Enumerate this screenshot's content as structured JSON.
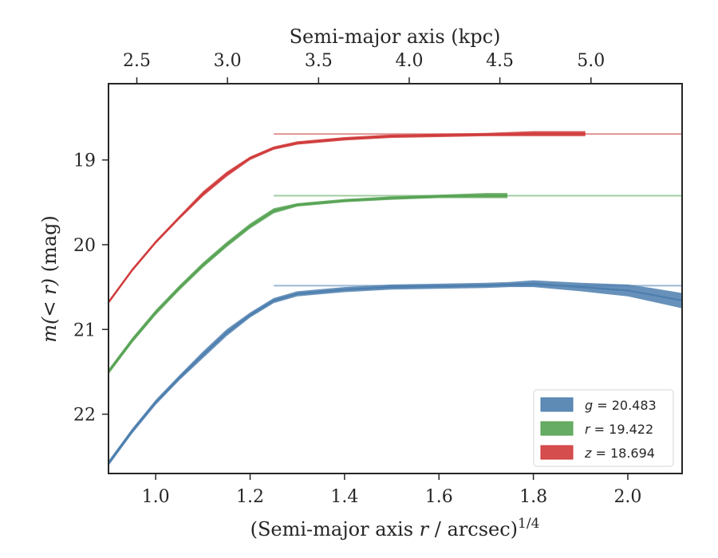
{
  "chart_data": {
    "type": "line",
    "xlabel_prefix": "(Semi-major axis ",
    "xlabel_var": "r",
    "xlabel_suffix": " / arcsec)",
    "xlabel_sup": "1/4",
    "ylabel_var1": "m(< ",
    "ylabel_var2": "r",
    "ylabel_var3": ")",
    "ylabel_unit": " (mag)",
    "top_xlabel": "Semi-major axis (kpc)",
    "xlim": [
      0.9,
      2.115
    ],
    "ylim": [
      22.7,
      18.1
    ],
    "y_inverted": true,
    "x_ticks": [
      1.0,
      1.2,
      1.4,
      1.6,
      1.8,
      2.0
    ],
    "x_tick_labels": [
      "1.0",
      "1.2",
      "1.4",
      "1.6",
      "1.8",
      "2.0"
    ],
    "y_ticks": [
      19,
      20,
      21,
      22
    ],
    "y_tick_labels": [
      "19",
      "20",
      "21",
      "22"
    ],
    "top_ticks_kpc": [
      2.5,
      3.0,
      3.5,
      4.0,
      4.5,
      5.0
    ],
    "top_tick_labels": [
      "2.5",
      "3.0",
      "3.5",
      "4.0",
      "4.5",
      "5.0"
    ],
    "top_tick_x": [
      0.96,
      1.152,
      1.345,
      1.537,
      1.729,
      1.922
    ],
    "legend_position": "lower-right",
    "series": [
      {
        "name": "g = 20.483",
        "band": "g",
        "value": "20.483",
        "color": "#4c7eae",
        "asymptote": 20.483,
        "points": [
          [
            0.9,
            22.58
          ],
          [
            0.95,
            22.2
          ],
          [
            1.0,
            21.86
          ],
          [
            1.05,
            21.57
          ],
          [
            1.1,
            21.3
          ],
          [
            1.15,
            21.04
          ],
          [
            1.2,
            20.83
          ],
          [
            1.25,
            20.66
          ],
          [
            1.3,
            20.58
          ],
          [
            1.4,
            20.53
          ],
          [
            1.5,
            20.5
          ],
          [
            1.6,
            20.49
          ],
          [
            1.7,
            20.48
          ],
          [
            1.75,
            20.47
          ],
          [
            1.8,
            20.46
          ],
          [
            1.9,
            20.5
          ],
          [
            2.0,
            20.54
          ],
          [
            2.05,
            20.59
          ],
          [
            2.115,
            20.66
          ]
        ],
        "band_width": [
          0.03,
          0.03,
          0.03,
          0.03,
          0.04,
          0.04,
          0.03,
          0.03,
          0.03,
          0.03,
          0.03,
          0.03,
          0.03,
          0.03,
          0.04,
          0.05,
          0.07,
          0.08,
          0.09
        ]
      },
      {
        "name": "r = 19.422",
        "band": "r",
        "value": "19.422",
        "color": "#56a353",
        "asymptote": 19.422,
        "points": [
          [
            0.9,
            21.5
          ],
          [
            0.95,
            21.13
          ],
          [
            1.0,
            20.8
          ],
          [
            1.05,
            20.51
          ],
          [
            1.1,
            20.24
          ],
          [
            1.15,
            20.0
          ],
          [
            1.2,
            19.78
          ],
          [
            1.25,
            19.6
          ],
          [
            1.3,
            19.53
          ],
          [
            1.4,
            19.48
          ],
          [
            1.5,
            19.45
          ],
          [
            1.6,
            19.43
          ],
          [
            1.7,
            19.42
          ],
          [
            1.745,
            19.42
          ]
        ],
        "band_width": [
          0.03,
          0.03,
          0.03,
          0.03,
          0.03,
          0.03,
          0.03,
          0.03,
          0.02,
          0.02,
          0.02,
          0.02,
          0.03,
          0.03
        ]
      },
      {
        "name": "z = 18.694",
        "band": "z",
        "value": "18.694",
        "color": "#d03a3a",
        "asymptote": 18.694,
        "points": [
          [
            0.9,
            20.68
          ],
          [
            0.95,
            20.3
          ],
          [
            1.0,
            19.97
          ],
          [
            1.05,
            19.68
          ],
          [
            1.1,
            19.4
          ],
          [
            1.15,
            19.17
          ],
          [
            1.2,
            18.98
          ],
          [
            1.25,
            18.86
          ],
          [
            1.3,
            18.8
          ],
          [
            1.4,
            18.75
          ],
          [
            1.5,
            18.72
          ],
          [
            1.6,
            18.71
          ],
          [
            1.7,
            18.7
          ],
          [
            1.8,
            18.69
          ],
          [
            1.9,
            18.69
          ],
          [
            1.91,
            18.69
          ]
        ],
        "band_width": [
          0.02,
          0.02,
          0.02,
          0.02,
          0.03,
          0.03,
          0.02,
          0.02,
          0.02,
          0.02,
          0.02,
          0.02,
          0.02,
          0.03,
          0.03,
          0.03
        ]
      }
    ]
  }
}
